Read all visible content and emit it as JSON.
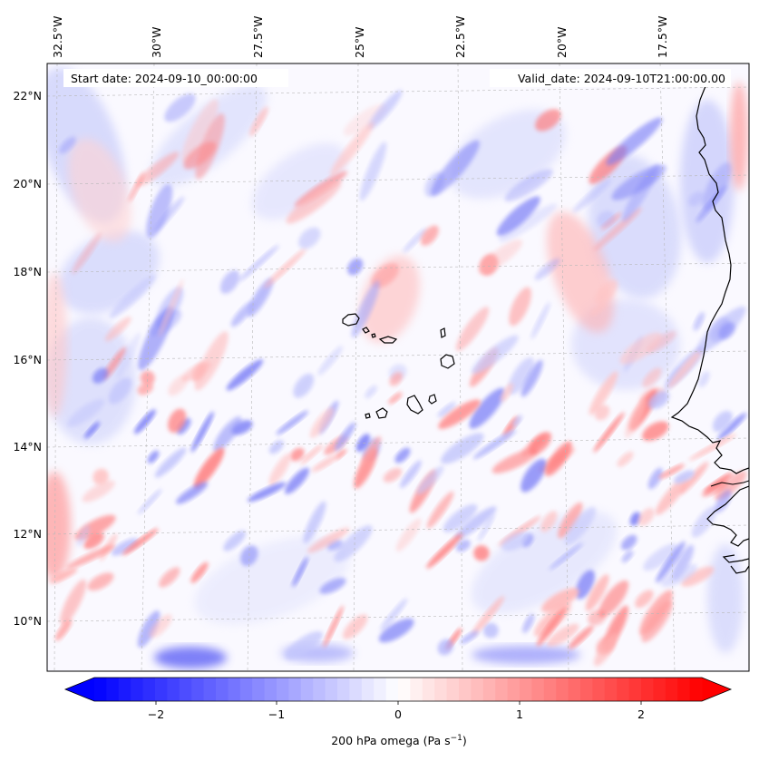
{
  "map": {
    "start_date": "Start date: 2024-09-10_00:00:00",
    "valid_date": "Valid_date: 2024-09-10T21:00:00.00",
    "lon_labels": [
      "32.5°W",
      "30°W",
      "27.5°W",
      "25°W",
      "22.5°W",
      "20°W",
      "17.5°W"
    ],
    "lat_labels": [
      "22°N",
      "20°N",
      "18°N",
      "16°N",
      "14°N",
      "12°N",
      "10°N"
    ],
    "field": "200 hPa omega",
    "colormap": "bwr",
    "coastline_color": "#000000"
  },
  "colorbar": {
    "ticks": [
      "−2",
      "−1",
      "0",
      "1",
      "2"
    ],
    "label": "200 hPa omega (Pa s",
    "label_exp": "−1",
    "label_close": ")",
    "min_color": "#0000ff",
    "mid_color": "#ffffff",
    "max_color": "#ff0000"
  }
}
